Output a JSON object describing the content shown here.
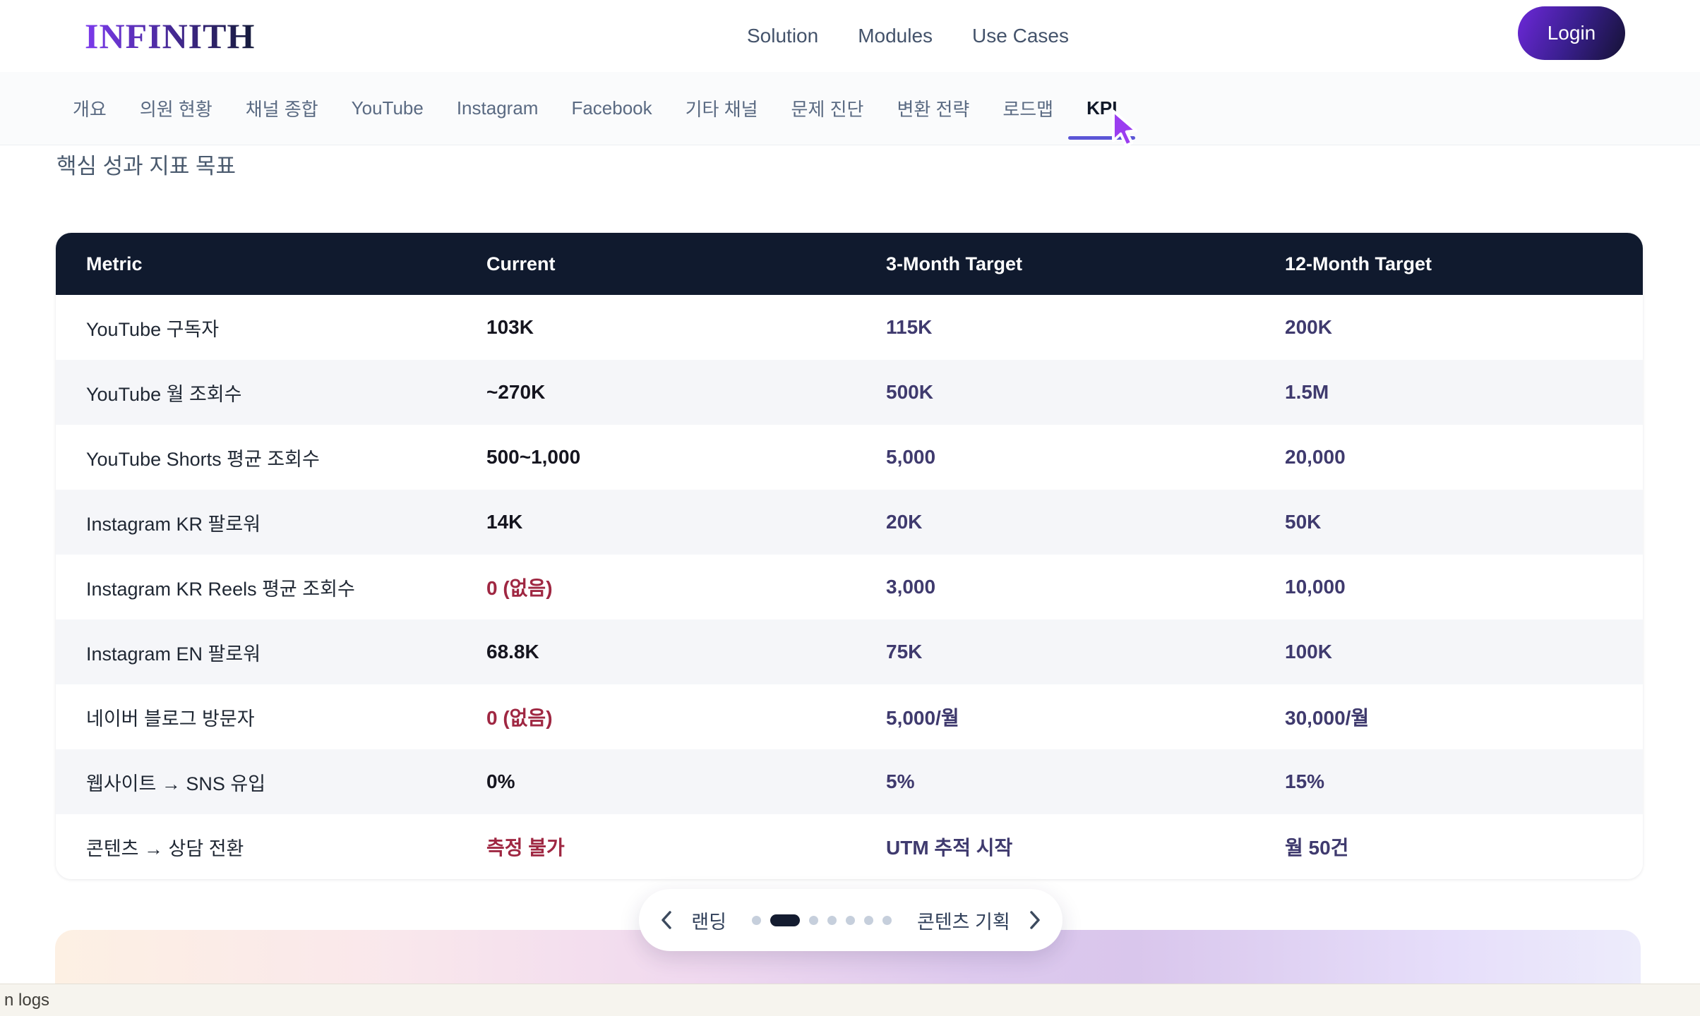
{
  "header": {
    "logo": "INFINITH",
    "nav": [
      "Solution",
      "Modules",
      "Use Cases"
    ],
    "login_label": "Login"
  },
  "tabs": {
    "items": [
      "개요",
      "의원 현황",
      "채널 종합",
      "YouTube",
      "Instagram",
      "Facebook",
      "기타 채널",
      "문제 진단",
      "변환 전략",
      "로드맵",
      "KPI"
    ],
    "active_index": 10
  },
  "section": {
    "title": "핵심 성과 지표 목표"
  },
  "table": {
    "columns": [
      "Metric",
      "Current",
      "3-Month Target",
      "12-Month Target"
    ],
    "rows": [
      {
        "metric": "YouTube 구독자",
        "current": "103K",
        "current_alert": false,
        "m3": "115K",
        "m12": "200K"
      },
      {
        "metric": "YouTube 월 조회수",
        "current": "~270K",
        "current_alert": false,
        "m3": "500K",
        "m12": "1.5M"
      },
      {
        "metric": "YouTube Shorts 평균 조회수",
        "current": "500~1,000",
        "current_alert": false,
        "m3": "5,000",
        "m12": "20,000"
      },
      {
        "metric": "Instagram KR 팔로워",
        "current": "14K",
        "current_alert": false,
        "m3": "20K",
        "m12": "50K"
      },
      {
        "metric": "Instagram KR Reels 평균 조회수",
        "current": "0 (없음)",
        "current_alert": true,
        "m3": "3,000",
        "m12": "10,000"
      },
      {
        "metric": "Instagram EN 팔로워",
        "current": "68.8K",
        "current_alert": false,
        "m3": "75K",
        "m12": "100K"
      },
      {
        "metric": "네이버 블로그 방문자",
        "current": "0 (없음)",
        "current_alert": true,
        "m3": "5,000/월",
        "m12": "30,000/월"
      },
      {
        "metric": "웹사이트 → SNS 유입",
        "current": "0%",
        "current_alert": false,
        "m3": "5%",
        "m12": "15%"
      },
      {
        "metric": "콘텐츠 → 상담 전환",
        "current": "측정 불가",
        "current_alert": true,
        "m3": "UTM 추적 시작",
        "m12": "월 50건"
      }
    ]
  },
  "pager": {
    "prev_label": "랜딩",
    "next_label": "콘텐츠 기획",
    "dots_total": 7,
    "active_dot": 2
  },
  "statusbar": {
    "text": "n logs"
  },
  "colors": {
    "accent_underline": "#5b55d6",
    "cursor_color": "#9b3df0",
    "table_header_bg": "#101a2e",
    "alert_color": "#9f2742",
    "target_color": "#3f3a6e",
    "dot_active": "#141c30",
    "dot_inactive": "#c6cfdc",
    "logo_from": "#7c3aed",
    "logo_to": "#141a3a",
    "login_from": "#6d28d9",
    "login_to": "#141233"
  }
}
